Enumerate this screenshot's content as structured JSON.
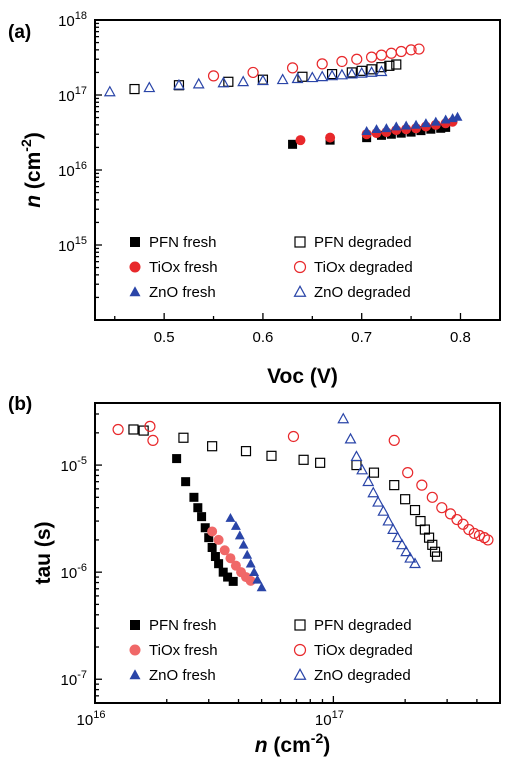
{
  "colors": {
    "PFN": "#000000",
    "TiOx": "#e8282b",
    "ZnO": "#2a45a8",
    "TiOx_b_fresh": "#f06868"
  },
  "chart_data": [
    {
      "type": "scatter",
      "panel_label": "(a)",
      "xlabel": "Voc (V)",
      "ylabel_main": "n",
      "ylabel_unit": " (cm",
      "ylabel_exp": "-2",
      "ylabel_close": ")",
      "xscale": "linear",
      "yscale": "log",
      "xlim": [
        0.43,
        0.84
      ],
      "ylim": [
        100000000000000.0,
        1e+18
      ],
      "xticks": [
        0.5,
        0.6,
        0.7,
        0.8
      ],
      "xtick_labels": [
        "0.5",
        "0.6",
        "0.7",
        "0.8"
      ],
      "yticks": [
        1000000000000000.0,
        1e+16,
        1e+17,
        1e+18
      ],
      "ytick_base": "10",
      "ytick_exps": [
        "15",
        "16",
        "17",
        "18"
      ],
      "grid": false,
      "legend": "bottom",
      "series": [
        {
          "name": "PFN fresh",
          "marker": "square",
          "filled": true,
          "color_key": "PFN",
          "points": [
            [
              0.63,
              2.2e+16
            ],
            [
              0.668,
              2.5e+16
            ],
            [
              0.705,
              2.7e+16
            ],
            [
              0.72,
              2.9e+16
            ],
            [
              0.73,
              3e+16
            ],
            [
              0.74,
              3.1e+16
            ],
            [
              0.75,
              3.2e+16
            ],
            [
              0.76,
              3.35e+16
            ],
            [
              0.77,
              3.5e+16
            ],
            [
              0.78,
              3.6e+16
            ],
            [
              0.785,
              3.7e+16
            ]
          ]
        },
        {
          "name": "TiOx fresh",
          "marker": "circle",
          "filled": true,
          "color_key": "TiOx",
          "points": [
            [
              0.638,
              2.5e+16
            ],
            [
              0.668,
              2.7e+16
            ],
            [
              0.705,
              3e+16
            ],
            [
              0.715,
              3.1e+16
            ],
            [
              0.725,
              3.2e+16
            ],
            [
              0.735,
              3.4e+16
            ],
            [
              0.745,
              3.5e+16
            ],
            [
              0.755,
              3.6e+16
            ],
            [
              0.765,
              3.8e+16
            ],
            [
              0.775,
              4e+16
            ],
            [
              0.785,
              4.2e+16
            ],
            [
              0.792,
              4.4e+16
            ]
          ]
        },
        {
          "name": "ZnO fresh",
          "marker": "triangle",
          "filled": true,
          "color_key": "ZnO",
          "points": [
            [
              0.705,
              3.3e+16
            ],
            [
              0.715,
              3.5e+16
            ],
            [
              0.725,
              3.6e+16
            ],
            [
              0.735,
              3.8e+16
            ],
            [
              0.745,
              3.9e+16
            ],
            [
              0.755,
              4e+16
            ],
            [
              0.765,
              4.2e+16
            ],
            [
              0.775,
              4.4e+16
            ],
            [
              0.785,
              4.7e+16
            ],
            [
              0.792,
              4.9e+16
            ],
            [
              0.797,
              5.1e+16
            ]
          ]
        },
        {
          "name": "PFN degraded",
          "marker": "square",
          "filled": false,
          "color_key": "PFN",
          "points": [
            [
              0.47,
              1.2e+17
            ],
            [
              0.515,
              1.35e+17
            ],
            [
              0.565,
              1.5e+17
            ],
            [
              0.6,
              1.6e+17
            ],
            [
              0.64,
              1.75e+17
            ],
            [
              0.67,
              1.9e+17
            ],
            [
              0.69,
              2e+17
            ],
            [
              0.7,
              2.1e+17
            ],
            [
              0.71,
              2.2e+17
            ],
            [
              0.72,
              2.35e+17
            ],
            [
              0.728,
              2.45e+17
            ],
            [
              0.735,
              2.55e+17
            ]
          ]
        },
        {
          "name": "TiOx degraded",
          "marker": "circle",
          "filled": false,
          "color_key": "TiOx",
          "points": [
            [
              0.55,
              1.8e+17
            ],
            [
              0.59,
              2e+17
            ],
            [
              0.63,
              2.3e+17
            ],
            [
              0.66,
              2.6e+17
            ],
            [
              0.68,
              2.8e+17
            ],
            [
              0.695,
              3e+17
            ],
            [
              0.71,
              3.2e+17
            ],
            [
              0.72,
              3.4e+17
            ],
            [
              0.73,
              3.6e+17
            ],
            [
              0.74,
              3.8e+17
            ],
            [
              0.75,
              4e+17
            ],
            [
              0.758,
              4.1e+17
            ]
          ]
        },
        {
          "name": "ZnO degraded",
          "marker": "triangle",
          "filled": false,
          "color_key": "ZnO",
          "points": [
            [
              0.445,
              1.1e+17
            ],
            [
              0.485,
              1.25e+17
            ],
            [
              0.515,
              1.35e+17
            ],
            [
              0.535,
              1.4e+17
            ],
            [
              0.56,
              1.45e+17
            ],
            [
              0.58,
              1.5e+17
            ],
            [
              0.6,
              1.55e+17
            ],
            [
              0.62,
              1.6e+17
            ],
            [
              0.635,
              1.65e+17
            ],
            [
              0.65,
              1.7e+17
            ],
            [
              0.66,
              1.75e+17
            ],
            [
              0.67,
              1.8e+17
            ],
            [
              0.68,
              1.85e+17
            ],
            [
              0.69,
              1.9e+17
            ],
            [
              0.7,
              1.95e+17
            ],
            [
              0.71,
              2e+17
            ],
            [
              0.72,
              2.05e+17
            ]
          ]
        }
      ]
    },
    {
      "type": "scatter",
      "panel_label": "(b)",
      "xlabel_main": "n",
      "xlabel_unit": " (cm",
      "xlabel_exp": "-2",
      "xlabel_close": ")",
      "ylabel": "tau (s)",
      "xscale": "log",
      "yscale": "log",
      "xlim": [
        1e+16,
        5e+17
      ],
      "ylim": [
        6e-08,
        3.8e-05
      ],
      "xticks": [
        1e+16,
        1e+17
      ],
      "xtick_base": "10",
      "xtick_exps": [
        "16",
        "17"
      ],
      "yticks": [
        1e-07,
        1e-06,
        1e-05
      ],
      "ytick_base": "10",
      "ytick_exps": [
        "-7",
        "-6",
        "-5"
      ],
      "grid": false,
      "legend": "bottom",
      "series": [
        {
          "name": "PFN fresh",
          "marker": "square",
          "filled": true,
          "color_key": "PFN",
          "points": [
            [
              2.2e+16,
              1.15e-05
            ],
            [
              2.4e+16,
              7e-06
            ],
            [
              2.6e+16,
              5e-06
            ],
            [
              2.7e+16,
              4e-06
            ],
            [
              2.8e+16,
              3.3e-06
            ],
            [
              2.9e+16,
              2.6e-06
            ],
            [
              3e+16,
              2.1e-06
            ],
            [
              3.1e+16,
              1.7e-06
            ],
            [
              3.2e+16,
              1.4e-06
            ],
            [
              3.3e+16,
              1.2e-06
            ],
            [
              3.45e+16,
              1e-06
            ],
            [
              3.6e+16,
              9e-07
            ],
            [
              3.8e+16,
              8.2e-07
            ]
          ]
        },
        {
          "name": "TiOx fresh",
          "marker": "circle",
          "filled": true,
          "color_key": "TiOx_b_fresh",
          "points": [
            [
              3.1e+16,
              2.4e-06
            ],
            [
              3.3e+16,
              2e-06
            ],
            [
              3.5e+16,
              1.6e-06
            ],
            [
              3.7e+16,
              1.35e-06
            ],
            [
              3.9e+16,
              1.15e-06
            ],
            [
              4.1e+16,
              1e-06
            ],
            [
              4.3e+16,
              9e-07
            ],
            [
              4.5e+16,
              8.3e-07
            ]
          ]
        },
        {
          "name": "ZnO fresh",
          "marker": "triangle",
          "filled": true,
          "color_key": "ZnO",
          "points": [
            [
              3.7e+16,
              3.2e-06
            ],
            [
              3.9e+16,
              2.7e-06
            ],
            [
              4.05e+16,
              2.2e-06
            ],
            [
              4.2e+16,
              1.8e-06
            ],
            [
              4.35e+16,
              1.45e-06
            ],
            [
              4.5e+16,
              1.2e-06
            ],
            [
              4.65e+16,
              1e-06
            ],
            [
              4.8e+16,
              8.5e-07
            ],
            [
              5e+16,
              7.2e-07
            ]
          ]
        },
        {
          "name": "PFN degraded",
          "marker": "square",
          "filled": false,
          "color_key": "PFN",
          "points": [
            [
              1.45e+16,
              2.15e-05
            ],
            [
              1.6e+16,
              2.1e-05
            ],
            [
              2.35e+16,
              1.8e-05
            ],
            [
              3.1e+16,
              1.5e-05
            ],
            [
              4.3e+16,
              1.35e-05
            ],
            [
              5.5e+16,
              1.22e-05
            ],
            [
              7.5e+16,
              1.12e-05
            ],
            [
              8.8e+16,
              1.05e-05
            ],
            [
              1.25e+17,
              1e-05
            ],
            [
              1.48e+17,
              8.5e-06
            ],
            [
              1.8e+17,
              6.5e-06
            ],
            [
              2e+17,
              4.8e-06
            ],
            [
              2.2e+17,
              3.8e-06
            ],
            [
              2.32e+17,
              3e-06
            ],
            [
              2.42e+17,
              2.5e-06
            ],
            [
              2.52e+17,
              2.1e-06
            ],
            [
              2.6e+17,
              1.8e-06
            ],
            [
              2.67e+17,
              1.55e-06
            ],
            [
              2.72e+17,
              1.4e-06
            ]
          ]
        },
        {
          "name": "TiOx degraded",
          "marker": "circle",
          "filled": false,
          "color_key": "TiOx",
          "points": [
            [
              1.25e+16,
              2.15e-05
            ],
            [
              1.7e+16,
              2.3e-05
            ],
            [
              1.75e+16,
              1.7e-05
            ],
            [
              6.8e+16,
              1.85e-05
            ],
            [
              1.8e+17,
              1.7e-05
            ],
            [
              2.05e+17,
              8.5e-06
            ],
            [
              2.35e+17,
              6.5e-06
            ],
            [
              2.6e+17,
              5e-06
            ],
            [
              2.85e+17,
              4e-06
            ],
            [
              3.1e+17,
              3.5e-06
            ],
            [
              3.3e+17,
              3.1e-06
            ],
            [
              3.5e+17,
              2.8e-06
            ],
            [
              3.7e+17,
              2.5e-06
            ],
            [
              3.9e+17,
              2.3e-06
            ],
            [
              4.1e+17,
              2.2e-06
            ],
            [
              4.3e+17,
              2.1e-06
            ],
            [
              4.45e+17,
              2e-06
            ]
          ]
        },
        {
          "name": "ZnO degraded",
          "marker": "triangle",
          "filled": false,
          "color_key": "ZnO",
          "points": [
            [
              1.1e+17,
              2.7e-05
            ],
            [
              1.18e+17,
              1.75e-05
            ],
            [
              1.25e+17,
              1.2e-05
            ],
            [
              1.32e+17,
              9e-06
            ],
            [
              1.4e+17,
              7e-06
            ],
            [
              1.47e+17,
              5.5e-06
            ],
            [
              1.54e+17,
              4.5e-06
            ],
            [
              1.62e+17,
              3.7e-06
            ],
            [
              1.7e+17,
              3e-06
            ],
            [
              1.78e+17,
              2.5e-06
            ],
            [
              1.86e+17,
              2.1e-06
            ],
            [
              1.94e+17,
              1.8e-06
            ],
            [
              2.02e+17,
              1.55e-06
            ],
            [
              2.1e+17,
              1.35e-06
            ],
            [
              2.2e+17,
              1.2e-06
            ]
          ]
        }
      ]
    }
  ]
}
